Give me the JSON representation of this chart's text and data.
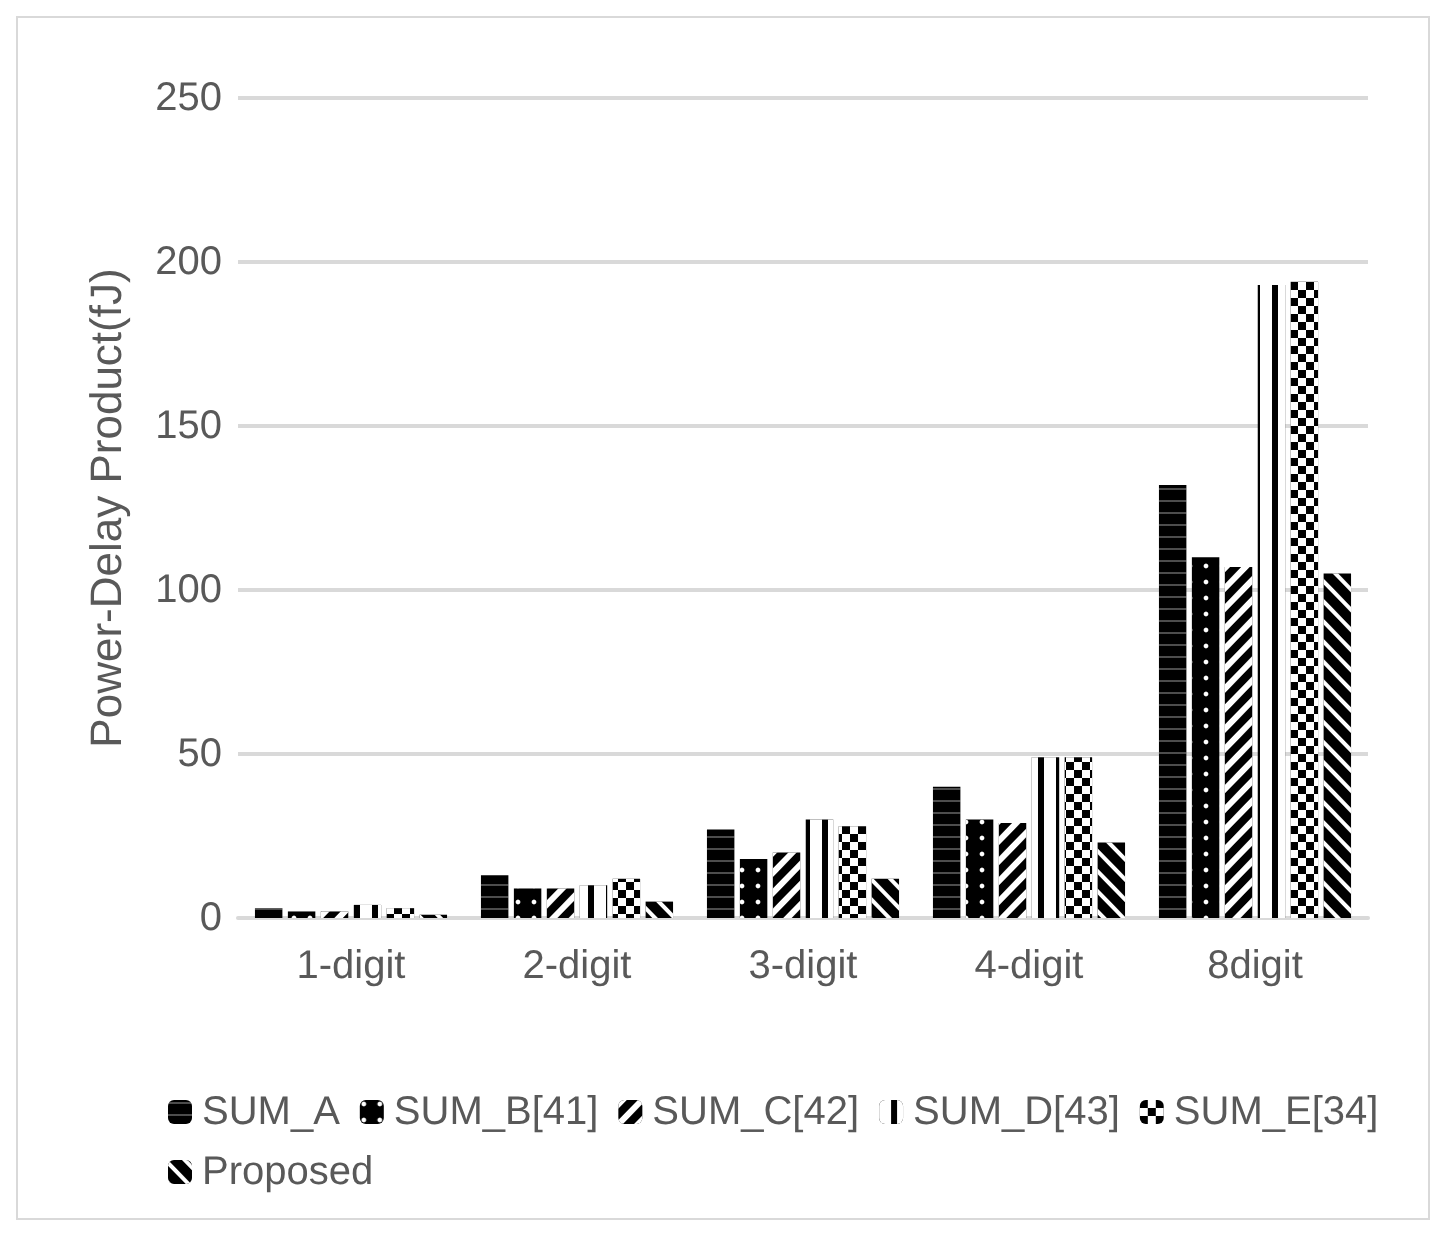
{
  "chart_data": {
    "type": "bar",
    "ylabel": "Power-Delay Product(fJ)",
    "categories": [
      "1-digit",
      "2-digit",
      "3-digit",
      "4-digit",
      "8digit"
    ],
    "series": [
      {
        "name": "SUM_A",
        "color": "#000000",
        "values": [
          3,
          13,
          27,
          40,
          132
        ]
      },
      {
        "name": "SUM_B[41]",
        "color": "#000000",
        "values": [
          2,
          9,
          18,
          30,
          110
        ]
      },
      {
        "name": "SUM_C[42]",
        "color": "#000000",
        "values": [
          2,
          9,
          20,
          29,
          107
        ]
      },
      {
        "name": "SUM_D[43]",
        "color": "#000000",
        "values": [
          4,
          10,
          30,
          49,
          193
        ]
      },
      {
        "name": "SUM_E[34]",
        "color": "#000000",
        "values": [
          3,
          12,
          28,
          49,
          194
        ]
      },
      {
        "name": "Proposed",
        "color": "#000000",
        "values": [
          1,
          5,
          12,
          23,
          105
        ]
      }
    ],
    "ylim": [
      0,
      250
    ],
    "yticks": [
      0,
      50,
      100,
      150,
      200,
      250
    ],
    "grid": "y",
    "legend": "bottom"
  }
}
